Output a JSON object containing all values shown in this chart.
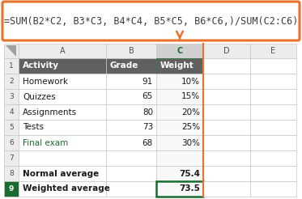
{
  "formula_text": "=SUM(B2*C2, B3*C3, B4*C4, B5*C5, B6*C6,)/SUM(C2:C6)",
  "col_labels": [
    "A",
    "B",
    "C",
    "D",
    "E"
  ],
  "header_row": [
    "Activity",
    "Grade",
    "Weight",
    "",
    ""
  ],
  "data_rows": [
    [
      "Homework",
      "91",
      "10%",
      "",
      ""
    ],
    [
      "Quizzes",
      "65",
      "15%",
      "",
      ""
    ],
    [
      "Assignments",
      "80",
      "20%",
      "",
      ""
    ],
    [
      "Tests",
      "73",
      "25%",
      "",
      ""
    ],
    [
      "Final exam",
      "68",
      "30%",
      "",
      ""
    ],
    [
      "",
      "",
      "",
      "",
      ""
    ],
    [
      "Normal average",
      "",
      "75.4",
      "",
      ""
    ],
    [
      "Weighted average",
      "",
      "73.5",
      "",
      ""
    ]
  ],
  "formula_box_color": "#E8722A",
  "formula_bg": "#FFFFFF",
  "formula_text_color": "#3C3C3C",
  "header_fill": "#606060",
  "header_text_color": "#FFFFFF",
  "col_c_header_fill": "#D0D0D0",
  "col_c_header_text": "#1A6B30",
  "final_exam_text_color": "#1A6B30",
  "grid_color": "#C8C8C8",
  "bg_color": "#FFFFFF",
  "arrow_color": "#E8722A",
  "weighted_row_border": "#1A6B30",
  "row_num_fill": "#ECECEC",
  "col_header_fill": "#ECECEC"
}
